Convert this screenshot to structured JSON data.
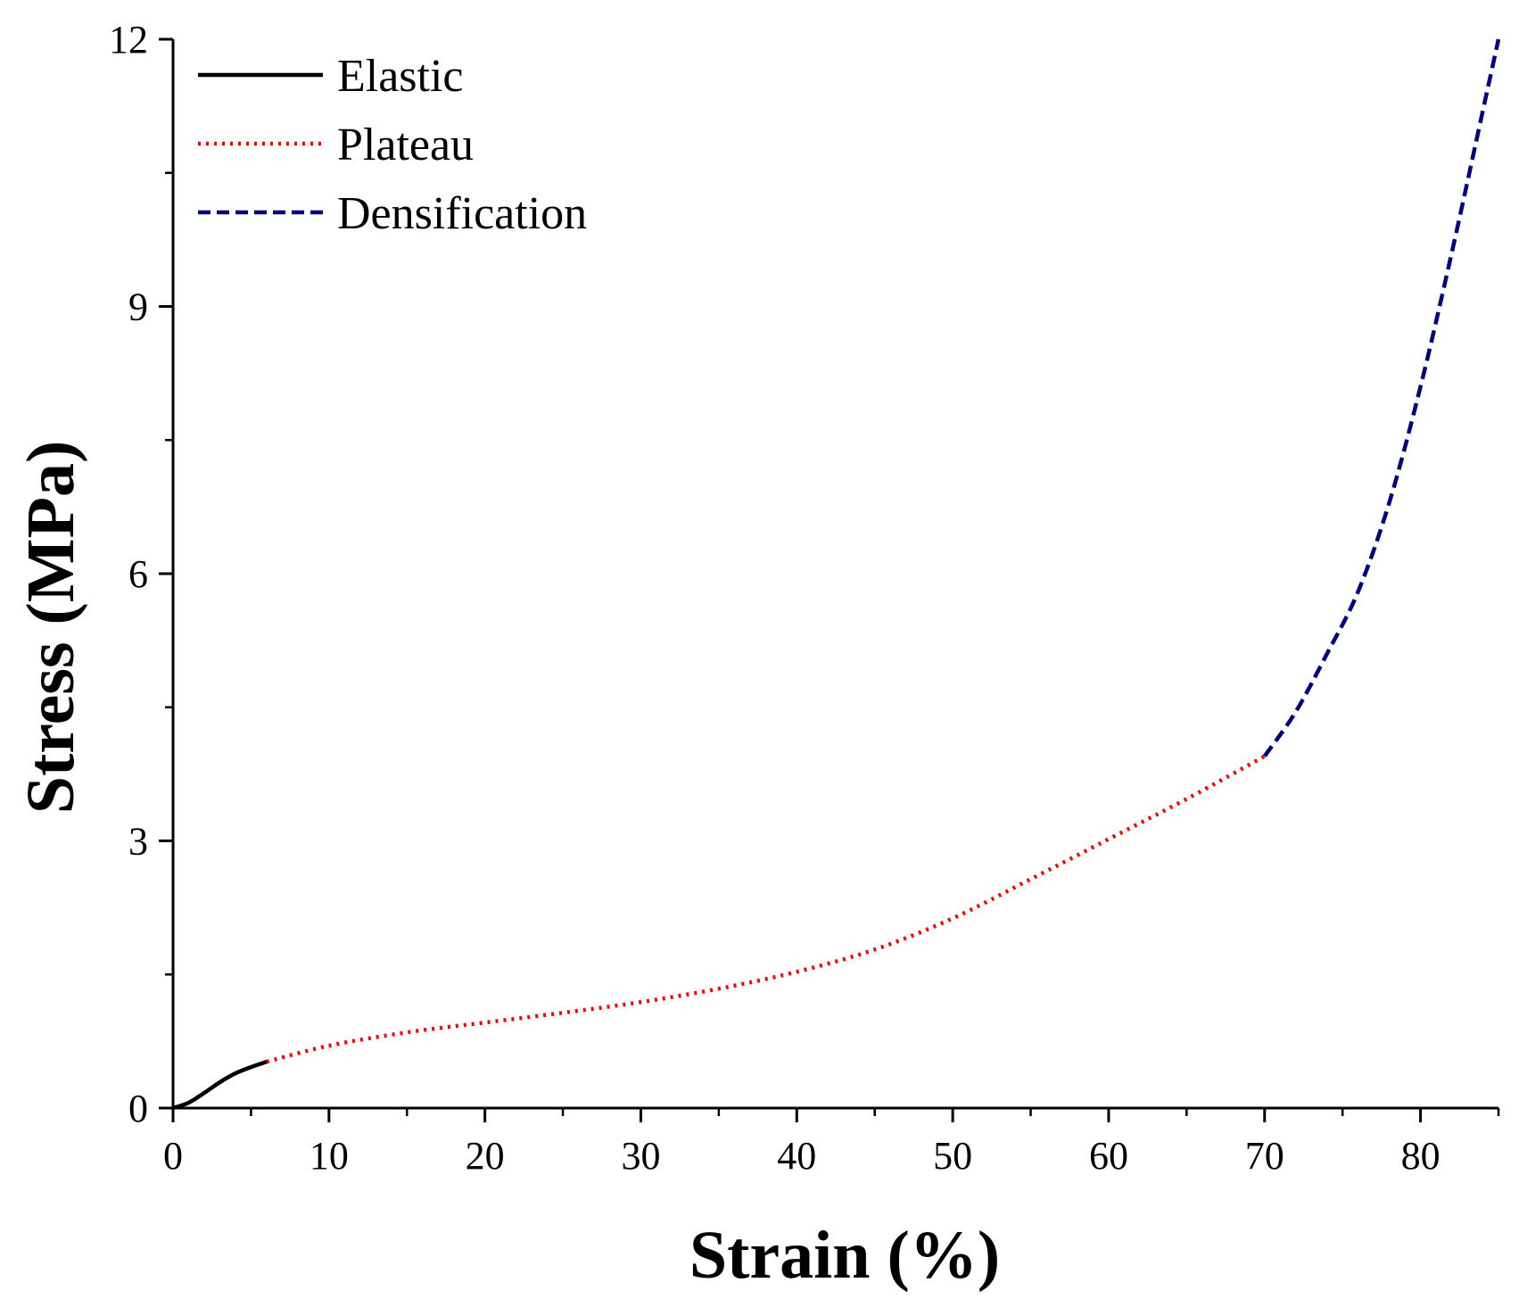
{
  "chart_data": {
    "type": "line",
    "title": "",
    "xlabel": "Strain (%)",
    "ylabel": "Stress (MPa)",
    "xlim": [
      0,
      85
    ],
    "ylim": [
      0,
      12
    ],
    "xticks": [
      0,
      10,
      20,
      30,
      40,
      50,
      60,
      70,
      80
    ],
    "xtick_labels": [
      "0",
      "10",
      "20",
      "30",
      "40",
      "50",
      "60",
      "70",
      "80"
    ],
    "yticks": [
      0,
      3,
      6,
      9,
      12
    ],
    "ytick_labels": [
      "0",
      "3",
      "6",
      "9",
      "12"
    ],
    "x_minor_step": 5,
    "y_minor_step": 1.5,
    "grid": false,
    "legend_position": "top-left",
    "series": [
      {
        "name": "Elastic",
        "color": "#000000",
        "line_style": "solid",
        "x": [
          0,
          1,
          2,
          3,
          4,
          5,
          6
        ],
        "y": [
          0,
          0.06,
          0.17,
          0.29,
          0.39,
          0.46,
          0.52
        ]
      },
      {
        "name": "Plateau",
        "color": "#ff0000",
        "line_style": "dotted",
        "x": [
          6,
          10,
          15,
          20,
          25,
          30,
          35,
          40,
          45,
          50,
          55,
          60,
          65,
          70
        ],
        "y": [
          0.52,
          0.7,
          0.85,
          0.96,
          1.07,
          1.19,
          1.34,
          1.53,
          1.78,
          2.13,
          2.57,
          3.02,
          3.47,
          3.95
        ]
      },
      {
        "name": "Densification",
        "color": "#000080",
        "line_style": "dashed",
        "x": [
          70,
          72,
          74,
          76,
          78,
          80,
          82,
          84,
          85
        ],
        "y": [
          3.95,
          4.45,
          5.1,
          5.8,
          6.8,
          8.1,
          9.6,
          11.2,
          12.0
        ]
      }
    ]
  }
}
